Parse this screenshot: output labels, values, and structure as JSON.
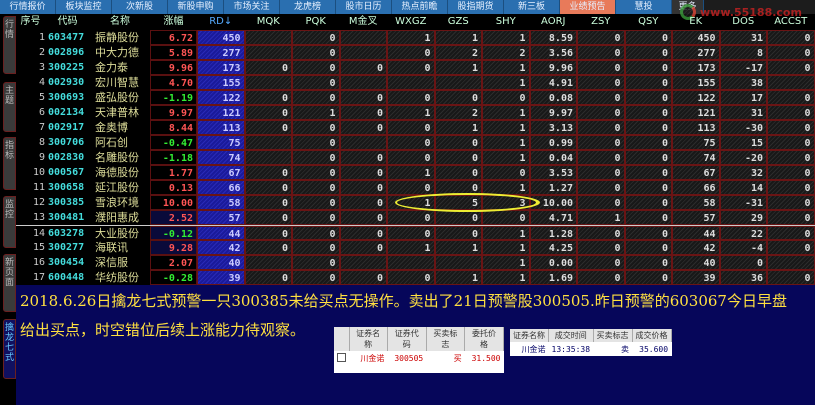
{
  "tabs": [
    "行情报价",
    "板块监控",
    "次新股",
    "新股申购",
    "市场关注",
    "龙虎榜",
    "股市日历",
    "热点前瞻",
    "股指期货",
    "新三板",
    "业绩预告",
    "慧投",
    "更多"
  ],
  "active_tab": "业绩预告",
  "logo_text": "www.55188.com",
  "side_tabs": [
    "行情",
    "主题",
    "指标",
    "监控",
    "新页面",
    "擒龙七式"
  ],
  "headers": [
    "序号",
    "代码",
    "名称",
    "涨幅",
    "RD↓",
    "MQK",
    "PQK",
    "M金叉",
    "WXGZ",
    "GZS",
    "SHY",
    "AORJ",
    "ZSY",
    "QSY",
    "EK",
    "DOS",
    "ACCST"
  ],
  "rows": [
    [
      "1",
      "603477",
      "振静股份",
      "6.72",
      "450",
      "",
      "0",
      "",
      "1",
      "1",
      "1",
      "8.59",
      "0",
      "0",
      "450",
      "31",
      "0"
    ],
    [
      "2",
      "002896",
      "中大力德",
      "5.89",
      "277",
      "",
      "0",
      "",
      "0",
      "2",
      "2",
      "3.56",
      "0",
      "0",
      "277",
      "8",
      "0"
    ],
    [
      "3",
      "300225",
      "金力泰",
      "9.96",
      "173",
      "0",
      "0",
      "0",
      "0",
      "1",
      "1",
      "9.96",
      "0",
      "0",
      "173",
      "-17",
      "0"
    ],
    [
      "4",
      "002930",
      "宏川智慧",
      "4.70",
      "155",
      "",
      "0",
      "",
      "",
      "",
      "1",
      "4.91",
      "0",
      "0",
      "155",
      "38",
      ""
    ],
    [
      "5",
      "300693",
      "盛弘股份",
      "-1.19",
      "122",
      "0",
      "0",
      "0",
      "0",
      "0",
      "0",
      "0.08",
      "0",
      "0",
      "122",
      "17",
      "0"
    ],
    [
      "6",
      "002134",
      "天津普林",
      "9.97",
      "121",
      "0",
      "1",
      "0",
      "1",
      "2",
      "1",
      "9.97",
      "0",
      "0",
      "121",
      "31",
      "0"
    ],
    [
      "7",
      "002917",
      "金奥博",
      "8.44",
      "113",
      "0",
      "0",
      "0",
      "0",
      "1",
      "1",
      "3.13",
      "0",
      "0",
      "113",
      "-30",
      "0"
    ],
    [
      "8",
      "300706",
      "阿石创",
      "-0.47",
      "75",
      "",
      "0",
      "",
      "0",
      "0",
      "1",
      "0.99",
      "0",
      "0",
      "75",
      "15",
      "0"
    ],
    [
      "9",
      "002830",
      "名雕股份",
      "-1.18",
      "74",
      "",
      "0",
      "0",
      "0",
      "0",
      "1",
      "0.04",
      "0",
      "0",
      "74",
      "-20",
      "0"
    ],
    [
      "10",
      "000567",
      "海德股份",
      "1.77",
      "67",
      "0",
      "0",
      "0",
      "1",
      "0",
      "0",
      "3.53",
      "0",
      "0",
      "67",
      "32",
      "0"
    ],
    [
      "11",
      "300658",
      "延江股份",
      "0.13",
      "66",
      "0",
      "0",
      "0",
      "0",
      "0",
      "1",
      "1.27",
      "0",
      "0",
      "66",
      "14",
      "0"
    ],
    [
      "12",
      "300385",
      "雪浪环境",
      "10.00",
      "58",
      "0",
      "0",
      "0",
      "1",
      "5",
      "3",
      "10.00",
      "0",
      "0",
      "58",
      "-31",
      "0"
    ],
    [
      "13",
      "300481",
      "濮阳惠成",
      "2.52",
      "57",
      "0",
      "0",
      "0",
      "0",
      "0",
      "0",
      "4.71",
      "1",
      "0",
      "57",
      "29",
      "0"
    ],
    [
      "14",
      "603278",
      "大业股份",
      "-0.12",
      "44",
      "0",
      "0",
      "0",
      "0",
      "0",
      "1",
      "1.28",
      "0",
      "0",
      "44",
      "22",
      "0"
    ],
    [
      "15",
      "300277",
      "海联讯",
      "9.28",
      "42",
      "0",
      "0",
      "0",
      "1",
      "1",
      "1",
      "4.25",
      "0",
      "0",
      "42",
      "-4",
      "0"
    ],
    [
      "16",
      "300454",
      "深信服",
      "2.07",
      "40",
      "",
      "0",
      "",
      "",
      "",
      "1",
      "0.00",
      "0",
      "0",
      "40",
      "0",
      ""
    ],
    [
      "17",
      "600448",
      "华纺股份",
      "-0.28",
      "39",
      "0",
      "0",
      "0",
      "0",
      "1",
      "1",
      "1.69",
      "0",
      "0",
      "39",
      "36",
      "0"
    ]
  ],
  "note": {
    "line1": "2018.6.26日擒龙七式预警一只300385未给买点无操作。卖出了21日预警股300505.昨日预警的603067今日早盘",
    "line2": "给出买点，时空错位后续上涨能力待观察。"
  },
  "order_table": {
    "headers": [
      "证券名称",
      "证券代码",
      "买卖标志",
      "委托价格"
    ],
    "row": [
      "川金诺",
      "300505",
      "买",
      "31.500"
    ]
  },
  "deal_table": {
    "headers": [
      "证券名称",
      "成交时间",
      "买卖标志",
      "成交价格"
    ],
    "row": [
      "川金诺",
      "13:35:38",
      "卖",
      "35.600"
    ]
  },
  "colors": {
    "up": "#ff5555",
    "down": "#33ee33",
    "active_tab": "#e87a5a",
    "tab": "#2a6fb0",
    "note_text": "#ffe040"
  }
}
